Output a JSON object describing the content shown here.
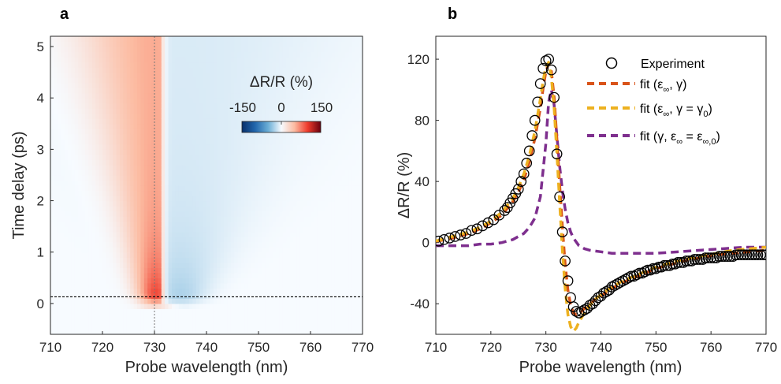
{
  "panels": {
    "a": {
      "label": "a"
    },
    "b": {
      "label": "b"
    }
  },
  "colorbar": {
    "title": "ΔR/R (%)",
    "ticks": [
      "-150",
      "0",
      "150"
    ],
    "range": [
      -150,
      150
    ],
    "colormap": [
      "#08306b",
      "#2166ac",
      "#6baed6",
      "#f7fbff",
      "#fcbba1",
      "#ef3b2c",
      "#67000d"
    ]
  },
  "chart_data": [
    {
      "type": "heatmap",
      "panel": "a",
      "xlabel": "Probe wavelength (nm)",
      "ylabel": "Time delay (ps)",
      "xlim": [
        710,
        770
      ],
      "ylim": [
        -0.6,
        5.2
      ],
      "xticks": [
        "710",
        "720",
        "730",
        "740",
        "750",
        "760",
        "770"
      ],
      "yticks": [
        "0",
        "1",
        "2",
        "3",
        "4",
        "5"
      ],
      "zlim": [
        -150,
        150
      ],
      "zlabel": "ΔR/R (%)",
      "features": {
        "positive_peak_wavelength_nm": 730,
        "negative_peak_wavelength_nm": 735,
        "max_delta_r_percent": 120,
        "min_delta_r_percent": -45,
        "time_zero_ps": 0.13
      },
      "guides": {
        "vertical_dotted_nm": 730,
        "horizontal_dotted_ps": 0.13
      },
      "grid": false
    },
    {
      "type": "scatter",
      "panel": "b",
      "xlabel": "Probe wavelength (nm)",
      "ylabel": "ΔR/R (%)",
      "xlim": [
        710,
        770
      ],
      "ylim": [
        -60,
        135
      ],
      "xticks": [
        "710",
        "720",
        "730",
        "740",
        "750",
        "760",
        "770"
      ],
      "yticks": [
        "-40",
        "0",
        "40",
        "80",
        "120"
      ],
      "legend": "top-right",
      "grid": false,
      "series": [
        {
          "name": "Experiment",
          "marker": "circle",
          "color": "#000000",
          "x": [
            710.5,
            711.5,
            712.5,
            713.5,
            714.5,
            715.5,
            716.5,
            717.5,
            718.5,
            719.5,
            720.5,
            721.5,
            722.5,
            723.0,
            723.5,
            724.0,
            724.5,
            725.0,
            725.5,
            726.0,
            726.5,
            727.0,
            727.5,
            728.0,
            728.5,
            729.0,
            729.5,
            730.0,
            730.5,
            731.0,
            731.5,
            732.0,
            732.5,
            733.0,
            733.5,
            734.0,
            734.5,
            735.0,
            735.5,
            736.0,
            736.5,
            737.0,
            737.5,
            738.0,
            738.5,
            739.0,
            739.5,
            740.0,
            740.5,
            741.0,
            741.5,
            742.0,
            742.5,
            743.0,
            743.5,
            744.0,
            744.5,
            745.0,
            745.5,
            746.0,
            746.5,
            747.0,
            747.5,
            748.0,
            748.5,
            749.0,
            749.5,
            750.0,
            750.5,
            751.0,
            751.5,
            752.0,
            752.5,
            753.0,
            753.5,
            754.0,
            754.5,
            755.0,
            755.5,
            756.0,
            756.5,
            757.0,
            757.5,
            758.0,
            758.5,
            759.0,
            759.5,
            760.0,
            760.5,
            761.0,
            761.5,
            762.0,
            762.5,
            763.0,
            763.5,
            764.0,
            764.5,
            765.0,
            765.5,
            766.0,
            766.5,
            767.0,
            767.5,
            768.0,
            768.5,
            769.0,
            769.5,
            770.0
          ],
          "y": [
            1,
            2,
            3,
            4,
            5,
            6,
            8,
            9,
            11,
            13,
            15,
            18,
            21,
            23,
            26,
            29,
            32,
            35,
            40,
            45,
            52,
            60,
            70,
            80,
            92,
            104,
            114,
            119,
            120,
            113,
            95,
            58,
            30,
            7,
            -12,
            -25,
            -36,
            -42,
            -45,
            -46,
            -45,
            -44,
            -43,
            -41,
            -40,
            -38,
            -36,
            -35,
            -33,
            -32,
            -31,
            -29,
            -28,
            -27,
            -26,
            -25,
            -24,
            -23,
            -22,
            -22,
            -21,
            -20,
            -20,
            -19,
            -18,
            -18,
            -17,
            -17,
            -16,
            -16,
            -15,
            -15,
            -15,
            -14,
            -14,
            -13,
            -13,
            -13,
            -12,
            -12,
            -12,
            -11,
            -11,
            -11,
            -11,
            -10,
            -10,
            -10,
            -10,
            -10,
            -9,
            -9,
            -9,
            -9,
            -9,
            -9,
            -8,
            -8,
            -8,
            -8,
            -8,
            -8,
            -8,
            -8,
            -8,
            -8,
            -8,
            -8
          ]
        },
        {
          "name": "fit (ε∞, γ)",
          "style": "dashed",
          "color": "#d95319",
          "x": [
            710,
            712,
            714,
            716,
            718,
            720,
            722,
            724,
            725,
            726,
            727,
            728,
            729,
            729.5,
            730,
            730.5,
            731,
            731.5,
            732,
            732.5,
            733,
            733.5,
            734,
            734.5,
            735,
            735.5,
            736,
            736.5,
            737,
            738,
            739,
            740,
            742,
            744,
            746,
            748,
            750,
            752,
            755,
            758,
            761,
            764,
            767,
            770
          ],
          "y": [
            1,
            2,
            4,
            6,
            9,
            13,
            18,
            27,
            33,
            41,
            53,
            68,
            88,
            101,
            112,
            117,
            112,
            95,
            68,
            38,
            10,
            -14,
            -31,
            -41,
            -46,
            -47,
            -46,
            -45,
            -43,
            -40,
            -37,
            -35,
            -30,
            -26,
            -23,
            -20,
            -17,
            -15,
            -12,
            -10,
            -8,
            -7,
            -6,
            -5
          ]
        },
        {
          "name": "fit (ε∞, γ = γ0)",
          "style": "dashed",
          "color": "#edb120",
          "x": [
            710,
            712,
            714,
            716,
            718,
            720,
            722,
            724,
            725,
            726,
            727,
            728,
            729,
            729.5,
            730,
            730.5,
            731,
            731.5,
            732,
            732.5,
            733,
            733.5,
            734,
            734.5,
            735,
            735.5,
            736,
            736.5,
            737,
            738,
            739,
            740,
            742,
            744,
            746,
            748,
            750,
            752,
            755,
            758,
            761,
            764,
            767,
            770
          ],
          "y": [
            1,
            3,
            5,
            7,
            10,
            14,
            20,
            29,
            36,
            45,
            57,
            73,
            94,
            106,
            115,
            118,
            108,
            88,
            58,
            26,
            -5,
            -30,
            -47,
            -55,
            -58,
            -56,
            -52,
            -49,
            -46,
            -41,
            -37,
            -34,
            -29,
            -25,
            -22,
            -19,
            -16,
            -14,
            -11,
            -9,
            -7,
            -5,
            -4,
            -3
          ]
        },
        {
          "name": "fit (γ, ε∞ = ε∞,0)",
          "style": "dashed",
          "color": "#7e2f8e",
          "x": [
            710,
            712,
            714,
            716,
            718,
            720,
            722,
            724,
            726,
            727,
            728,
            729,
            730,
            730.5,
            731,
            731.5,
            732,
            732.5,
            733,
            733.5,
            734,
            734.5,
            735,
            736,
            737,
            738,
            740,
            742,
            744,
            746,
            748,
            750,
            754,
            758,
            762,
            766,
            770
          ],
          "y": [
            -2,
            -2,
            -2,
            -2,
            -1,
            -1,
            0,
            2,
            6,
            10,
            16,
            30,
            65,
            92,
            100,
            90,
            70,
            50,
            34,
            22,
            13,
            7,
            3,
            -2,
            -4,
            -5,
            -6,
            -7,
            -7,
            -7,
            -7,
            -7,
            -6,
            -5,
            -4,
            -3,
            -3
          ]
        }
      ]
    }
  ]
}
